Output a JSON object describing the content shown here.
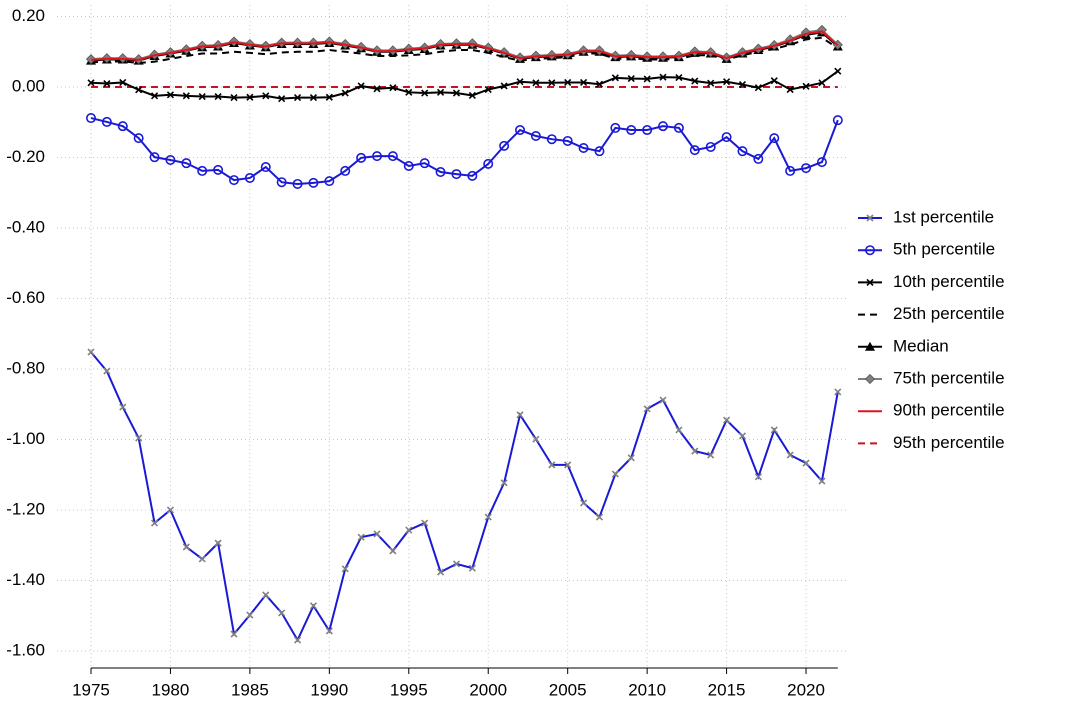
{
  "chart_data": {
    "type": "line",
    "x": [
      1975,
      1976,
      1977,
      1978,
      1979,
      1980,
      1981,
      1982,
      1983,
      1984,
      1985,
      1986,
      1987,
      1988,
      1989,
      1990,
      1991,
      1992,
      1993,
      1994,
      1995,
      1996,
      1997,
      1998,
      1999,
      2000,
      2001,
      2002,
      2003,
      2004,
      2005,
      2006,
      2007,
      2008,
      2009,
      2010,
      2011,
      2012,
      2013,
      2014,
      2015,
      2016,
      2017,
      2018,
      2019,
      2020,
      2021,
      2022
    ],
    "xlim": [
      1974,
      2023
    ],
    "xticks": [
      1975,
      1980,
      1985,
      1990,
      1995,
      2000,
      2005,
      2010,
      2015,
      2020
    ],
    "ylim": [
      -1.65,
      0.235
    ],
    "yticks": [
      {
        "value": 0.2,
        "label": "0.20"
      },
      {
        "value": 0,
        "label": "0.00"
      },
      {
        "value": -0.2,
        "label": "-0.20"
      },
      {
        "value": -0.4,
        "label": "-0.40"
      },
      {
        "value": -0.6,
        "label": "-0.60"
      },
      {
        "value": -0.8,
        "label": "-0.80"
      },
      {
        "value": -1.0,
        "label": "-1.00"
      },
      {
        "value": -1.2,
        "label": "-1.20"
      },
      {
        "value": -1.4,
        "label": "-1.40"
      },
      {
        "value": -1.6,
        "label": "-1.60"
      }
    ],
    "grid": true,
    "legend": "right",
    "series": [
      {
        "name": "1st percentile",
        "color": "#1a1ad6",
        "marker": "x",
        "marker_color": "#808080",
        "dash": false,
        "values": [
          -0.752,
          -0.806,
          -0.908,
          -0.996,
          -1.237,
          -1.2,
          -1.305,
          -1.339,
          -1.294,
          -1.552,
          -1.498,
          -1.441,
          -1.492,
          -1.569,
          -1.472,
          -1.543,
          -1.367,
          -1.277,
          -1.268,
          -1.316,
          -1.257,
          -1.237,
          -1.376,
          -1.353,
          -1.365,
          -1.22,
          -1.123,
          -0.93,
          -0.999,
          -1.072,
          -1.072,
          -1.18,
          -1.22,
          -1.098,
          -1.052,
          -0.913,
          -0.888,
          -0.973,
          -1.033,
          -1.044,
          -0.945,
          -0.99,
          -1.106,
          -0.973,
          -1.044,
          -1.067,
          -1.118,
          -0.865
        ]
      },
      {
        "name": "5th percentile",
        "color": "#1a1ad6",
        "marker": "circle",
        "marker_color": "#1a1ad6",
        "dash": false,
        "values": [
          -0.088,
          -0.099,
          -0.111,
          -0.145,
          -0.199,
          -0.207,
          -0.216,
          -0.238,
          -0.235,
          -0.264,
          -0.258,
          -0.227,
          -0.27,
          -0.275,
          -0.272,
          -0.267,
          -0.238,
          -0.201,
          -0.196,
          -0.196,
          -0.224,
          -0.216,
          -0.241,
          -0.247,
          -0.252,
          -0.218,
          -0.167,
          -0.122,
          -0.139,
          -0.148,
          -0.153,
          -0.173,
          -0.182,
          -0.116,
          -0.122,
          -0.122,
          -0.111,
          -0.116,
          -0.179,
          -0.17,
          -0.142,
          -0.182,
          -0.204,
          -0.145,
          -0.238,
          -0.23,
          -0.213,
          -0.094
        ]
      },
      {
        "name": "10th percentile",
        "color": "#000000",
        "marker": "x",
        "marker_color": "#000000",
        "dash": false,
        "values": [
          0.012,
          0.01,
          0.013,
          -0.008,
          -0.025,
          -0.022,
          -0.025,
          -0.027,
          -0.027,
          -0.03,
          -0.029,
          -0.025,
          -0.033,
          -0.03,
          -0.03,
          -0.029,
          -0.017,
          0.003,
          -0.005,
          -0.002,
          -0.015,
          -0.017,
          -0.015,
          -0.017,
          -0.024,
          -0.007,
          0.003,
          0.015,
          0.012,
          0.012,
          0.013,
          0.013,
          0.008,
          0.026,
          0.024,
          0.023,
          0.028,
          0.027,
          0.017,
          0.011,
          0.015,
          0.007,
          -0.002,
          0.018,
          -0.007,
          0.002,
          0.012,
          0.045
        ]
      },
      {
        "name": "25th percentile",
        "color": "#000000",
        "marker": "none",
        "marker_color": "#000000",
        "dash": true,
        "values": [
          0.07,
          0.072,
          0.073,
          0.068,
          0.072,
          0.08,
          0.088,
          0.095,
          0.095,
          0.1,
          0.097,
          0.093,
          0.098,
          0.1,
          0.1,
          0.105,
          0.1,
          0.095,
          0.088,
          0.088,
          0.09,
          0.093,
          0.1,
          0.105,
          0.105,
          0.097,
          0.085,
          0.075,
          0.08,
          0.082,
          0.085,
          0.095,
          0.095,
          0.08,
          0.082,
          0.078,
          0.078,
          0.08,
          0.09,
          0.09,
          0.078,
          0.09,
          0.1,
          0.108,
          0.12,
          0.135,
          0.14,
          0.11
        ]
      },
      {
        "name": "Median",
        "color": "#000000",
        "marker": "triangle",
        "marker_color": "#000000",
        "dash": false,
        "values": [
          0.075,
          0.078,
          0.078,
          0.075,
          0.088,
          0.095,
          0.103,
          0.113,
          0.115,
          0.125,
          0.118,
          0.113,
          0.122,
          0.122,
          0.122,
          0.125,
          0.118,
          0.11,
          0.1,
          0.1,
          0.105,
          0.108,
          0.118,
          0.12,
          0.12,
          0.108,
          0.095,
          0.08,
          0.085,
          0.087,
          0.09,
          0.1,
          0.1,
          0.085,
          0.087,
          0.083,
          0.083,
          0.085,
          0.097,
          0.095,
          0.08,
          0.095,
          0.105,
          0.115,
          0.13,
          0.148,
          0.155,
          0.115
        ]
      },
      {
        "name": "75th percentile",
        "color": "#808080",
        "marker": "diamond",
        "marker_color": "#808080",
        "dash": false,
        "values": [
          0.079,
          0.082,
          0.082,
          0.079,
          0.092,
          0.099,
          0.107,
          0.117,
          0.119,
          0.129,
          0.122,
          0.117,
          0.126,
          0.126,
          0.126,
          0.129,
          0.122,
          0.114,
          0.104,
          0.104,
          0.109,
          0.112,
          0.122,
          0.124,
          0.124,
          0.112,
          0.099,
          0.084,
          0.089,
          0.091,
          0.094,
          0.104,
          0.104,
          0.089,
          0.091,
          0.087,
          0.087,
          0.089,
          0.101,
          0.099,
          0.084,
          0.099,
          0.109,
          0.119,
          0.135,
          0.155,
          0.162,
          0.12
        ]
      },
      {
        "name": "90th percentile",
        "color": "#e0141e",
        "marker": "none",
        "marker_color": "#e0141e",
        "dash": false,
        "values": [
          0.077,
          0.08,
          0.08,
          0.077,
          0.09,
          0.097,
          0.105,
          0.115,
          0.117,
          0.127,
          0.12,
          0.115,
          0.124,
          0.124,
          0.124,
          0.127,
          0.12,
          0.112,
          0.102,
          0.102,
          0.107,
          0.11,
          0.12,
          0.122,
          0.122,
          0.11,
          0.097,
          0.082,
          0.087,
          0.089,
          0.092,
          0.102,
          0.102,
          0.087,
          0.089,
          0.085,
          0.085,
          0.087,
          0.099,
          0.097,
          0.082,
          0.097,
          0.107,
          0.117,
          0.132,
          0.151,
          0.158,
          0.118
        ]
      },
      {
        "name": "95th percentile",
        "color": "#d01020",
        "marker": "none",
        "marker_color": "#d01020",
        "dash": true,
        "values": [
          0,
          0,
          0,
          0,
          0,
          0,
          0,
          0,
          0,
          0,
          0,
          0,
          0,
          0,
          0,
          0,
          0,
          0,
          0,
          0,
          0,
          0,
          0,
          0,
          0,
          0,
          0,
          0,
          0,
          0,
          0,
          0,
          0,
          0,
          0,
          0,
          0,
          0,
          0,
          0,
          0,
          0,
          0,
          0,
          0,
          0,
          0,
          0
        ]
      }
    ]
  }
}
